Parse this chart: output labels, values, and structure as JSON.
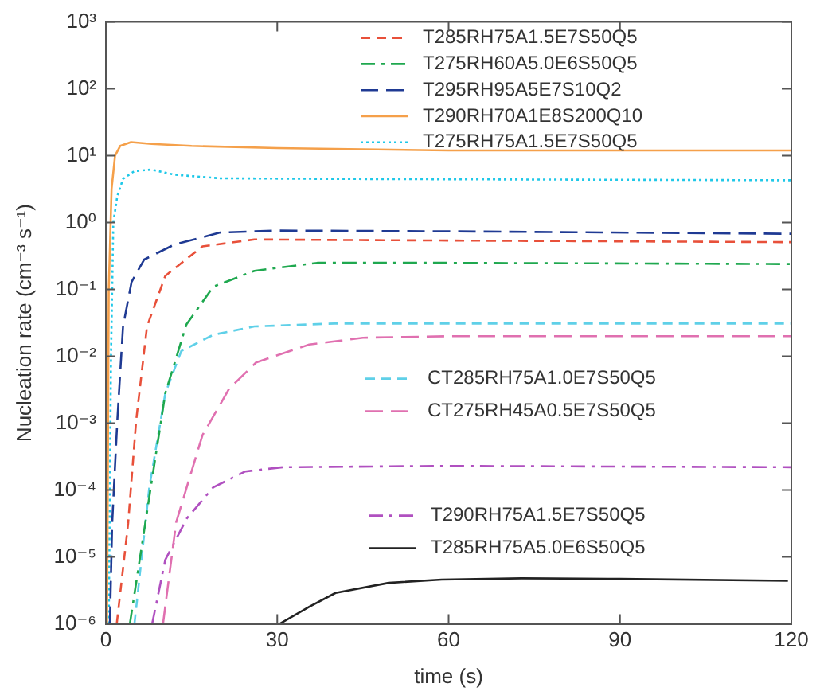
{
  "chart_data": {
    "type": "line",
    "xlabel": "time (s)",
    "ylabel": "Nucleation rate (cm⁻³ s⁻¹)",
    "log": "y",
    "grid": false,
    "legend": "top right",
    "marker": "none",
    "xlim": [
      0,
      120
    ],
    "xticks": [
      0,
      30,
      60,
      90,
      120
    ],
    "ylim": [
      1e-06,
      1000
    ],
    "yticks": [
      {
        "value": 1e-06,
        "label": "10⁻⁶"
      },
      {
        "value": 1e-05,
        "label": "10⁻⁵"
      },
      {
        "value": 0.0001,
        "label": "10⁻⁴"
      },
      {
        "value": 0.001,
        "label": "10⁻³"
      },
      {
        "value": 0.01,
        "label": "10⁻²"
      },
      {
        "value": 0.1,
        "label": "10⁻¹"
      },
      {
        "value": 1,
        "label": "10⁰"
      },
      {
        "value": 10,
        "label": "10¹"
      },
      {
        "value": 100,
        "label": "10²"
      },
      {
        "value": 1000,
        "label": "10³"
      }
    ],
    "series": [
      {
        "name": "T285RH75A1.5E7S50Q5",
        "color": "#e8503a",
        "line_style": "dashed",
        "x": [
          1.9,
          3.9,
          5.3,
          7.2,
          10.4,
          16.9,
          26,
          40,
          120
        ],
        "values": [
          1e-06,
          3.2e-05,
          0.0011,
          0.028,
          0.16,
          0.44,
          0.56,
          0.55,
          0.51
        ]
      },
      {
        "name": "T275RH60A5.0E6S50Q5",
        "color": "#1fa84f",
        "line_style": "dashdot",
        "x": [
          4.2,
          7.6,
          10.4,
          14.1,
          18.8,
          26,
          37,
          60,
          120
        ],
        "values": [
          1e-06,
          7.9e-05,
          0.0028,
          0.03,
          0.11,
          0.19,
          0.25,
          0.25,
          0.24
        ]
      },
      {
        "name": "T295RH95A5E7S10Q2",
        "color": "#1f3a93",
        "line_style": "longdash",
        "x": [
          0.7,
          1.1,
          2,
          3,
          4.5,
          6.7,
          12,
          20,
          30,
          60,
          120
        ],
        "values": [
          1e-06,
          3.2e-05,
          0.0011,
          0.028,
          0.13,
          0.28,
          0.47,
          0.71,
          0.76,
          0.74,
          0.68
        ]
      },
      {
        "name": "T290RH70A1E8S200Q10",
        "color": "#f5a04a",
        "line_style": "solid",
        "x": [
          0.2,
          0.5,
          1,
          1.6,
          2.5,
          4.4,
          8,
          15,
          30,
          60,
          120
        ],
        "values": [
          1e-06,
          0.1,
          3.2,
          10,
          14,
          16,
          15,
          14,
          13,
          12,
          12
        ]
      },
      {
        "name": "T275RH75A1.5E7S50Q5",
        "color": "#1ec8e8",
        "line_style": "dotted",
        "x": [
          0.5,
          0.9,
          1.3,
          2,
          3,
          5,
          8,
          12,
          20,
          40,
          120
        ],
        "values": [
          1e-06,
          0.01,
          1,
          2.5,
          4.5,
          5.9,
          6.2,
          5.2,
          4.6,
          4.5,
          4.3
        ]
      },
      {
        "name": "CT285RH75A1.0E7S50Q5",
        "color": "#5fd0e8",
        "line_style": "dashed",
        "x": [
          5,
          7.6,
          10.4,
          13.2,
          18.8,
          26,
          40,
          120
        ],
        "values": [
          1e-06,
          0.00011,
          0.0028,
          0.012,
          0.021,
          0.028,
          0.031,
          0.031
        ]
      },
      {
        "name": "CT275RH45A0.5E7S50Q5",
        "color": "#e070b0",
        "line_style": "longdash",
        "x": [
          10,
          12.3,
          16.9,
          21.6,
          26.3,
          35.6,
          45,
          60,
          120
        ],
        "values": [
          1e-06,
          3.3e-05,
          0.00066,
          0.0033,
          0.0081,
          0.015,
          0.019,
          0.02,
          0.02
        ]
      },
      {
        "name": "T290RH75A1.5E7S50Q5",
        "color": "#b050c0",
        "line_style": "dashdot",
        "x": [
          8.1,
          10.4,
          14.2,
          18.8,
          24.4,
          31,
          60,
          120
        ],
        "values": [
          1e-06,
          9.1e-06,
          3.8e-05,
          0.00011,
          0.00019,
          0.00022,
          0.00023,
          0.00022
        ]
      },
      {
        "name": "T285RH75A5.0E6S50Q5",
        "color": "#222222",
        "line_style": "solid",
        "x": [
          30.4,
          35.6,
          40.2,
          49.5,
          58.8,
          72.8,
          90,
          119.4
        ],
        "values": [
          1e-06,
          1.8e-06,
          2.9e-06,
          4.1e-06,
          4.6e-06,
          4.8e-06,
          4.7e-06,
          4.4e-06
        ]
      }
    ]
  }
}
